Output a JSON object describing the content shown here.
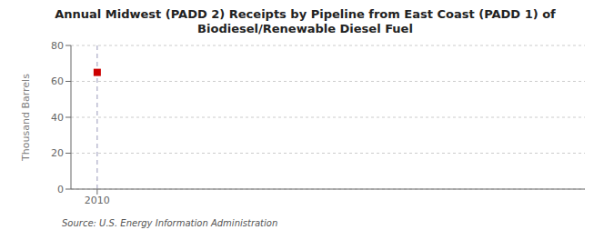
{
  "chart_data": {
    "type": "scatter",
    "title": "Annual Midwest (PADD 2) Receipts by Pipeline from East Coast (PADD 1) of\nBiodiesel/Renewable Diesel Fuel",
    "ylabel": "Thousand Barrels",
    "annotations": [
      "Source: U.S. Energy Information Administration"
    ],
    "x": [
      2010
    ],
    "values": [
      65
    ],
    "color": "#cc0000",
    "marker": "square",
    "xlim": [
      2009.3,
      2023
    ],
    "xticks": [
      2010
    ],
    "ylim": [
      0,
      80
    ],
    "yticks": [
      0,
      20,
      40,
      60,
      80
    ],
    "grid": true,
    "reference_lines": [
      {
        "x": 2010,
        "color": "#9999bb",
        "line_style": "dashed"
      }
    ]
  }
}
